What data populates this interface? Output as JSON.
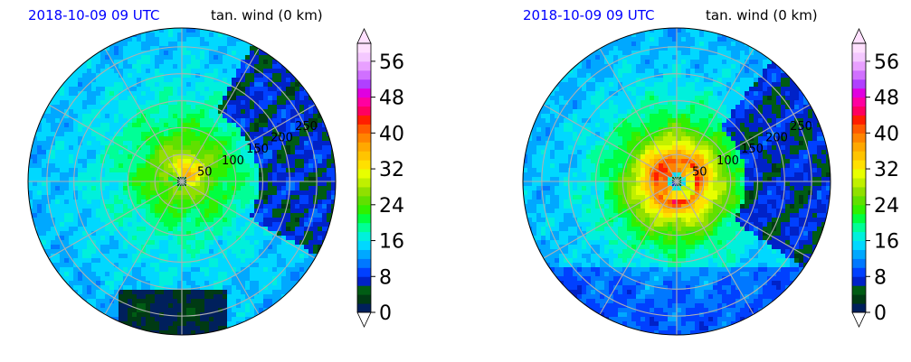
{
  "panels": [
    {
      "title_left": "2018-10-09 09 UTC",
      "title_right": "tan. wind (0 km)",
      "range_labels": [
        "50",
        "100",
        "150",
        "200",
        "250"
      ],
      "field": "asymmetric",
      "colorbar_ticks": [
        "0",
        "8",
        "16",
        "24",
        "32",
        "40",
        "48",
        "56"
      ]
    },
    {
      "title_left": "2018-10-09 09 UTC",
      "title_right": "tan. wind (0 km)",
      "range_labels": [
        "50",
        "100",
        "150",
        "200",
        "250"
      ],
      "field": "symmetric",
      "colorbar_ticks": [
        "0",
        "8",
        "16",
        "24",
        "32",
        "40",
        "48",
        "56"
      ]
    }
  ],
  "chart_data": [
    {
      "type": "heatmap",
      "projection": "polar",
      "title": "2018-10-09 09 UTC   tan. wind (0 km)",
      "radial_ticks": [
        50,
        100,
        150,
        200,
        250
      ],
      "azimuth_gridlines_deg": [
        0,
        30,
        60,
        90,
        120,
        150,
        180,
        210,
        240,
        270,
        300,
        330
      ],
      "colorbar": {
        "min": 0,
        "max": 60,
        "ticks": [
          0,
          8,
          16,
          24,
          32,
          40,
          48,
          56
        ],
        "extend": "both"
      },
      "description_values": {
        "center_max_approx": 34,
        "background_typical": 16,
        "east_sector_typical": 6
      }
    },
    {
      "type": "heatmap",
      "projection": "polar",
      "title": "2018-10-09 09 UTC   tan. wind (0 km)",
      "radial_ticks": [
        50,
        100,
        150,
        200,
        250
      ],
      "azimuth_gridlines_deg": [
        0,
        30,
        60,
        90,
        120,
        150,
        180,
        210,
        240,
        270,
        300,
        330
      ],
      "colorbar": {
        "min": 0,
        "max": 60,
        "ticks": [
          0,
          8,
          16,
          24,
          32,
          40,
          48,
          56
        ],
        "extend": "both"
      },
      "description_values": {
        "eyewall_max_approx": 42,
        "background_typical": 16,
        "east_sector_typical": 6
      }
    }
  ],
  "colormap": [
    "#00205c",
    "#003a14",
    "#005c14",
    "#0022c8",
    "#0040ff",
    "#0078ff",
    "#00a8ff",
    "#00d8ff",
    "#00f0dc",
    "#00ff96",
    "#00ff40",
    "#30f000",
    "#60e000",
    "#90e000",
    "#c0f000",
    "#e8ff00",
    "#ffe000",
    "#ffc400",
    "#ffa800",
    "#ff8400",
    "#ff5a00",
    "#ff1e00",
    "#ff0060",
    "#ff00a0",
    "#e000e0",
    "#b040ff",
    "#d070ff",
    "#e8a0ff",
    "#f4c8ff",
    "#ffe0ff"
  ]
}
